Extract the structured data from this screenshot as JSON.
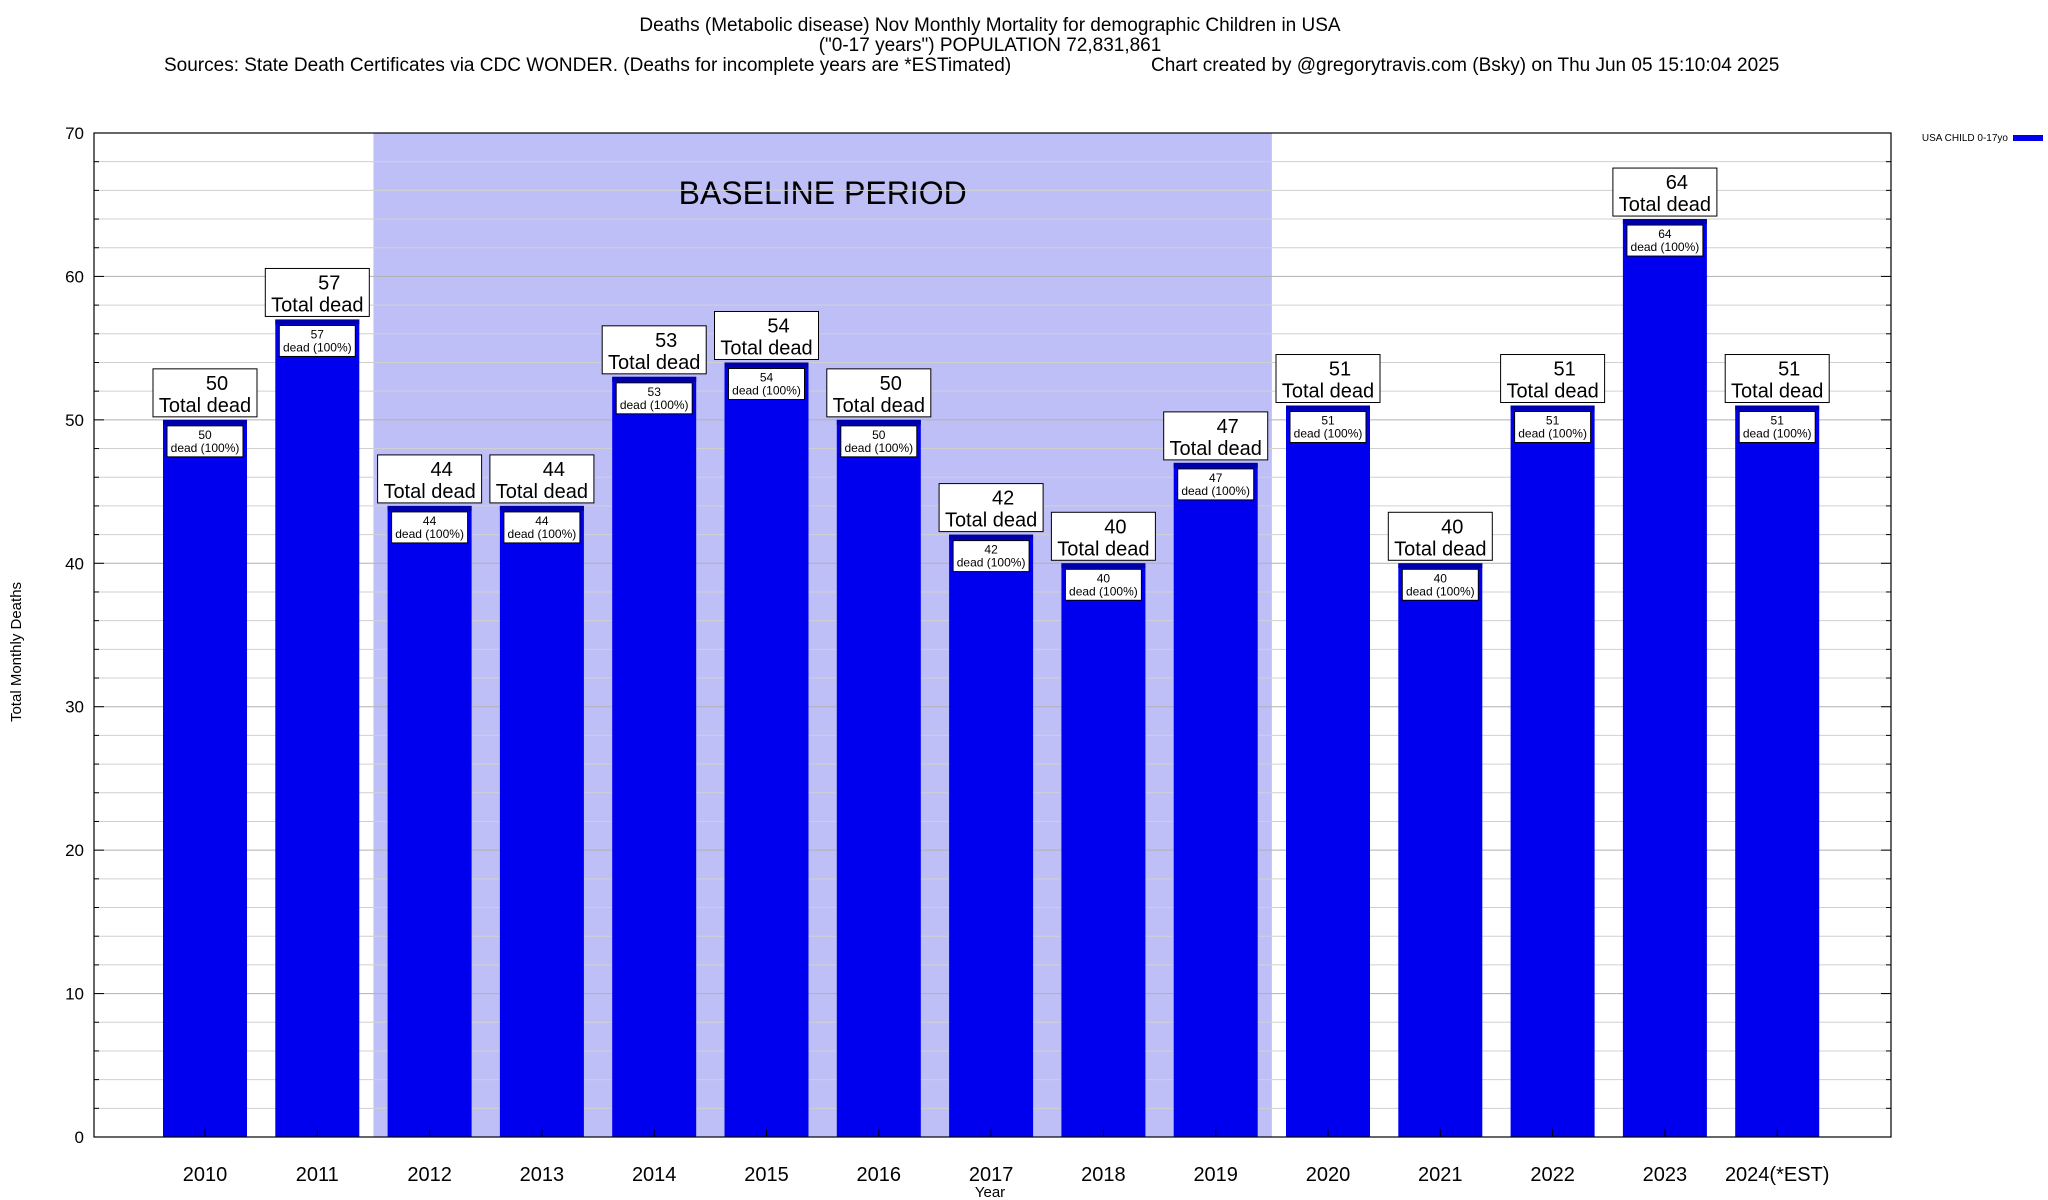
{
  "chart_data": {
    "type": "bar",
    "title_lines": [
      "Deaths (Metabolic disease) Nov Monthly Mortality for demographic Children in USA",
      "(\"0-17 years\") POPULATION 72,831,861"
    ],
    "sources": "Sources: State Death Certificates via CDC WONDER. (Deaths for incomplete years are *ESTimated)",
    "credit": "Chart created by @gregorytravis.com (Bsky) on Thu Jun 05 15:10:04 2025",
    "xlabel": "Year",
    "ylabel": "Total Monthly Deaths",
    "ylim": [
      0,
      70
    ],
    "yticks": [
      0,
      10,
      20,
      30,
      40,
      50,
      60,
      70
    ],
    "grid": true,
    "legend_position": "top-right",
    "categories": [
      "2010",
      "2011",
      "2012",
      "2013",
      "2014",
      "2015",
      "2016",
      "2017",
      "2018",
      "2019",
      "2020",
      "2021",
      "2022",
      "2023",
      "2024(*EST)"
    ],
    "series": [
      {
        "name": "USA CHILD 0-17yo",
        "color": "#0000ee",
        "values": [
          50,
          57,
          44,
          44,
          53,
          54,
          50,
          42,
          40,
          47,
          51,
          40,
          51,
          64,
          51
        ]
      }
    ],
    "top_label_suffix": "Total dead",
    "inner_label_suffix": "dead (100%)",
    "baseline_region": {
      "label": "BASELINE PERIOD",
      "from": "2012",
      "to": "2019",
      "color": "#bfbff7"
    }
  }
}
